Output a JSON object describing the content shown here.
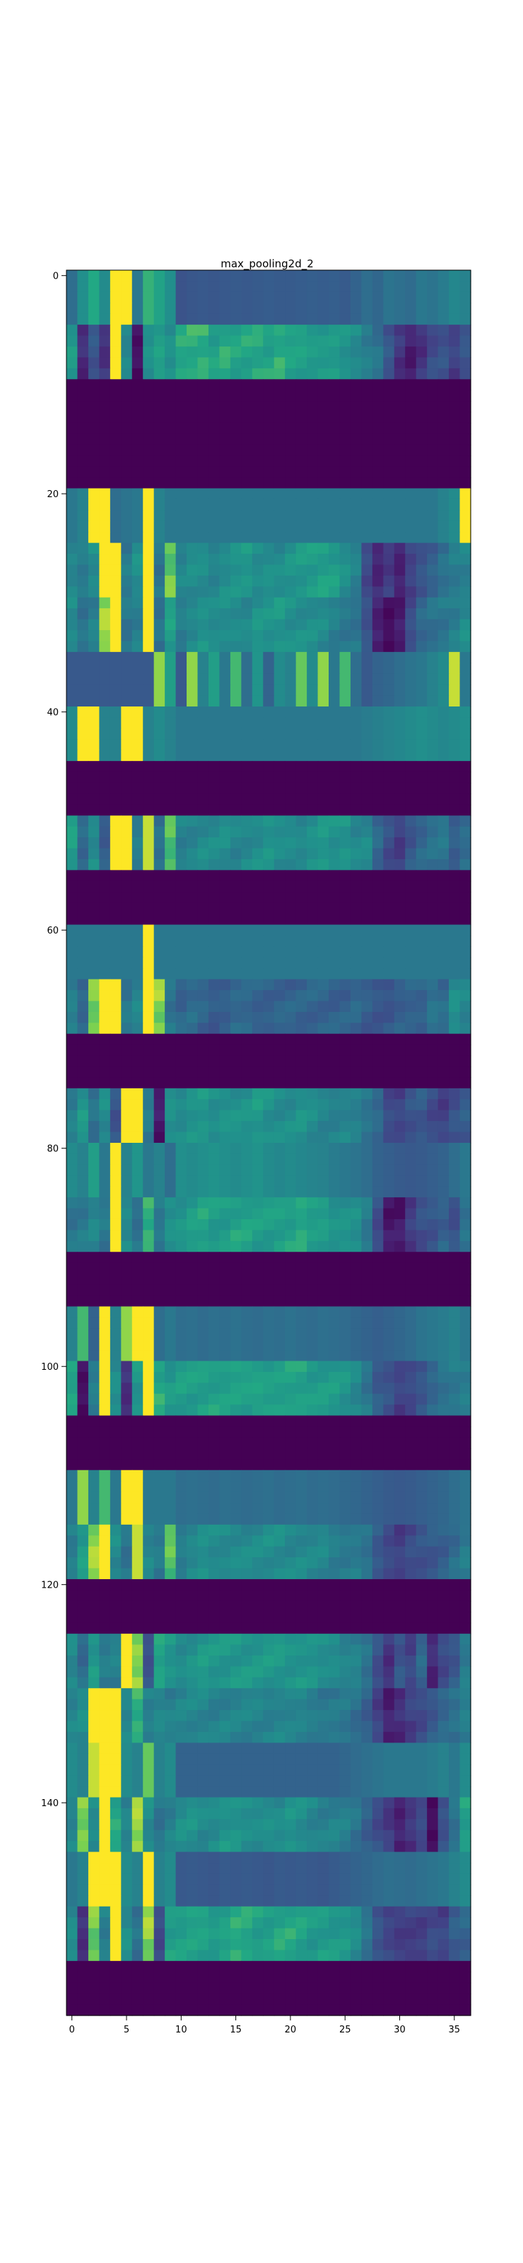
{
  "chart_data": {
    "type": "heatmap",
    "title": "max_pooling2d_2",
    "xlabel": "",
    "ylabel": "",
    "n_cols": 37,
    "n_rows": 160,
    "xlim": [
      -0.5,
      36.5
    ],
    "ylim": [
      159.5,
      -0.5
    ],
    "x_ticks": [
      0,
      5,
      10,
      15,
      20,
      25,
      30,
      35
    ],
    "y_ticks": [
      0,
      20,
      40,
      60,
      80,
      100,
      120,
      140
    ],
    "colormap": "viridis",
    "grid": false,
    "palette": {
      "low": "#440154",
      "mid": "#277f8e",
      "high": "#fde725"
    },
    "bands": [
      {
        "rows": [
          0,
          4
        ],
        "kind": "flat",
        "values": [
          0.45,
          0.62,
          0.75,
          0.6,
          1.0,
          1.0,
          0.5,
          0.78,
          0.72,
          0.62,
          0.32,
          0.34,
          0.35,
          0.34,
          0.35,
          0.36,
          0.35,
          0.36,
          0.37,
          0.36,
          0.36,
          0.37,
          0.38,
          0.37,
          0.38,
          0.36,
          0.4,
          0.45,
          0.42,
          0.48,
          0.46,
          0.44,
          0.5,
          0.48,
          0.52,
          0.58,
          0.55
        ]
      },
      {
        "rows": [
          5,
          9
        ],
        "kind": "profile",
        "values": [
          0.65,
          0.15,
          0.35,
          0.2,
          1.0,
          0.55,
          0.05,
          0.65,
          0.72,
          0.62,
          0.72,
          0.75,
          0.78,
          0.72,
          0.74,
          0.7,
          0.73,
          0.76,
          0.72,
          0.74,
          0.7,
          0.72,
          0.7,
          0.68,
          0.66,
          0.62,
          0.6,
          0.55,
          0.48,
          0.32,
          0.18,
          0.12,
          0.2,
          0.28,
          0.3,
          0.24,
          0.35
        ]
      },
      {
        "rows": [
          10,
          19
        ],
        "kind": "dead"
      },
      {
        "rows": [
          20,
          24
        ],
        "kind": "flat",
        "values": [
          0.5,
          0.55,
          1.0,
          1.0,
          0.45,
          0.48,
          0.5,
          1.0,
          0.55,
          0.5,
          0.5,
          0.5,
          0.5,
          0.5,
          0.5,
          0.5,
          0.5,
          0.5,
          0.5,
          0.5,
          0.5,
          0.5,
          0.5,
          0.5,
          0.5,
          0.5,
          0.5,
          0.5,
          0.5,
          0.5,
          0.5,
          0.5,
          0.5,
          0.5,
          0.55,
          0.6,
          1.0
        ]
      },
      {
        "rows": [
          25,
          29
        ],
        "kind": "profile",
        "values": [
          0.55,
          0.5,
          0.6,
          1.0,
          1.0,
          0.5,
          0.6,
          1.0,
          0.5,
          0.85,
          0.55,
          0.6,
          0.62,
          0.58,
          0.6,
          0.62,
          0.65,
          0.62,
          0.64,
          0.6,
          0.62,
          0.66,
          0.7,
          0.72,
          0.68,
          0.6,
          0.55,
          0.3,
          0.15,
          0.2,
          0.1,
          0.25,
          0.35,
          0.4,
          0.45,
          0.5,
          0.55
        ]
      },
      {
        "rows": [
          30,
          34
        ],
        "kind": "profile",
        "values": [
          0.6,
          0.5,
          0.55,
          0.9,
          1.0,
          0.5,
          0.55,
          1.0,
          0.45,
          0.7,
          0.55,
          0.6,
          0.62,
          0.58,
          0.6,
          0.62,
          0.6,
          0.64,
          0.62,
          0.66,
          0.64,
          0.62,
          0.6,
          0.58,
          0.55,
          0.52,
          0.48,
          0.3,
          0.1,
          0.05,
          0.12,
          0.3,
          0.4,
          0.45,
          0.5,
          0.55,
          0.6
        ]
      },
      {
        "rows": [
          35,
          39
        ],
        "kind": "flat",
        "values": [
          0.35,
          0.35,
          0.35,
          0.35,
          0.35,
          0.35,
          0.35,
          0.35,
          0.9,
          0.7,
          0.35,
          0.9,
          0.55,
          0.7,
          0.5,
          0.8,
          0.45,
          0.65,
          0.4,
          0.6,
          0.55,
          0.85,
          0.6,
          0.9,
          0.5,
          0.8,
          0.45,
          0.35,
          0.4,
          0.42,
          0.45,
          0.48,
          0.5,
          0.55,
          0.6,
          0.95,
          0.5
        ]
      },
      {
        "rows": [
          40,
          44
        ],
        "kind": "flat",
        "values": [
          0.6,
          1.0,
          1.0,
          0.55,
          0.55,
          1.0,
          1.0,
          0.55,
          0.6,
          0.55,
          0.5,
          0.5,
          0.5,
          0.5,
          0.5,
          0.5,
          0.5,
          0.5,
          0.5,
          0.5,
          0.5,
          0.5,
          0.5,
          0.5,
          0.5,
          0.5,
          0.5,
          0.52,
          0.54,
          0.56,
          0.58,
          0.6,
          0.62,
          0.6,
          0.58,
          0.6,
          0.62
        ]
      },
      {
        "rows": [
          45,
          49
        ],
        "kind": "dead"
      },
      {
        "rows": [
          50,
          54
        ],
        "kind": "profile",
        "values": [
          0.7,
          0.45,
          0.6,
          0.35,
          1.0,
          1.0,
          0.55,
          0.95,
          0.45,
          0.8,
          0.55,
          0.58,
          0.6,
          0.58,
          0.6,
          0.58,
          0.6,
          0.6,
          0.62,
          0.6,
          0.62,
          0.6,
          0.62,
          0.64,
          0.62,
          0.66,
          0.6,
          0.58,
          0.4,
          0.3,
          0.25,
          0.35,
          0.4,
          0.45,
          0.5,
          0.4,
          0.45
        ]
      },
      {
        "rows": [
          55,
          59
        ],
        "kind": "dead"
      },
      {
        "rows": [
          60,
          64
        ],
        "kind": "flat",
        "values": [
          0.5,
          0.5,
          0.5,
          0.5,
          0.5,
          0.5,
          0.5,
          1.0,
          0.5,
          0.5,
          0.5,
          0.5,
          0.5,
          0.5,
          0.5,
          0.5,
          0.5,
          0.5,
          0.5,
          0.5,
          0.5,
          0.5,
          0.5,
          0.5,
          0.5,
          0.5,
          0.5,
          0.5,
          0.5,
          0.5,
          0.5,
          0.5,
          0.5,
          0.5,
          0.5,
          0.5,
          0.5
        ]
      },
      {
        "rows": [
          65,
          69
        ],
        "kind": "profile",
        "values": [
          0.55,
          0.4,
          0.85,
          1.0,
          1.0,
          0.5,
          0.55,
          1.0,
          0.9,
          0.5,
          0.4,
          0.42,
          0.4,
          0.38,
          0.4,
          0.42,
          0.4,
          0.38,
          0.4,
          0.42,
          0.4,
          0.38,
          0.4,
          0.42,
          0.4,
          0.38,
          0.4,
          0.38,
          0.36,
          0.34,
          0.36,
          0.38,
          0.4,
          0.5,
          0.45,
          0.6,
          0.55
        ]
      },
      {
        "rows": [
          70,
          74
        ],
        "kind": "dead"
      },
      {
        "rows": [
          75,
          79
        ],
        "kind": "profile",
        "values": [
          0.55,
          0.65,
          0.45,
          0.6,
          0.35,
          1.0,
          1.0,
          0.5,
          0.1,
          0.65,
          0.6,
          0.62,
          0.64,
          0.62,
          0.66,
          0.64,
          0.62,
          0.66,
          0.64,
          0.62,
          0.6,
          0.62,
          0.6,
          0.58,
          0.56,
          0.55,
          0.52,
          0.48,
          0.45,
          0.3,
          0.25,
          0.3,
          0.35,
          0.3,
          0.25,
          0.3,
          0.35
        ]
      },
      {
        "rows": [
          80,
          84
        ],
        "kind": "flat",
        "values": [
          0.6,
          0.55,
          0.7,
          0.5,
          1.0,
          0.55,
          0.65,
          0.5,
          0.55,
          0.45,
          0.62,
          0.6,
          0.62,
          0.64,
          0.62,
          0.6,
          0.62,
          0.64,
          0.6,
          0.58,
          0.6,
          0.58,
          0.56,
          0.55,
          0.52,
          0.5,
          0.48,
          0.45,
          0.4,
          0.38,
          0.36,
          0.35,
          0.36,
          0.38,
          0.4,
          0.45,
          0.5
        ]
      },
      {
        "rows": [
          85,
          89
        ],
        "kind": "profile",
        "values": [
          0.5,
          0.5,
          0.55,
          0.5,
          1.0,
          0.6,
          0.45,
          0.75,
          0.5,
          0.65,
          0.66,
          0.68,
          0.7,
          0.68,
          0.7,
          0.72,
          0.7,
          0.68,
          0.7,
          0.72,
          0.7,
          0.72,
          0.68,
          0.7,
          0.66,
          0.64,
          0.6,
          0.5,
          0.3,
          0.1,
          0.08,
          0.2,
          0.3,
          0.35,
          0.4,
          0.3,
          0.45
        ]
      },
      {
        "rows": [
          90,
          94
        ],
        "kind": "dead"
      },
      {
        "rows": [
          95,
          99
        ],
        "kind": "flat",
        "values": [
          0.55,
          0.8,
          0.4,
          1.0,
          0.55,
          0.9,
          1.0,
          1.0,
          0.45,
          0.5,
          0.45,
          0.46,
          0.44,
          0.46,
          0.45,
          0.47,
          0.45,
          0.44,
          0.46,
          0.45,
          0.47,
          0.45,
          0.44,
          0.46,
          0.45,
          0.44,
          0.42,
          0.4,
          0.38,
          0.4,
          0.42,
          0.44,
          0.48,
          0.5,
          0.52,
          0.55,
          0.5
        ]
      },
      {
        "rows": [
          100,
          104
        ],
        "kind": "profile",
        "values": [
          0.7,
          0.05,
          0.55,
          1.0,
          0.6,
          0.15,
          0.65,
          1.0,
          0.75,
          0.65,
          0.68,
          0.7,
          0.72,
          0.7,
          0.68,
          0.7,
          0.72,
          0.74,
          0.7,
          0.68,
          0.7,
          0.72,
          0.7,
          0.68,
          0.66,
          0.64,
          0.6,
          0.5,
          0.35,
          0.3,
          0.25,
          0.3,
          0.35,
          0.4,
          0.45,
          0.5,
          0.55
        ]
      },
      {
        "rows": [
          105,
          109
        ],
        "kind": "dead"
      },
      {
        "rows": [
          110,
          114
        ],
        "kind": "flat",
        "values": [
          0.5,
          0.9,
          0.55,
          0.8,
          0.5,
          1.0,
          1.0,
          0.5,
          0.5,
          0.5,
          0.45,
          0.46,
          0.45,
          0.44,
          0.46,
          0.45,
          0.44,
          0.45,
          0.46,
          0.44,
          0.45,
          0.46,
          0.44,
          0.45,
          0.44,
          0.43,
          0.42,
          0.4,
          0.38,
          0.36,
          0.35,
          0.36,
          0.38,
          0.4,
          0.42,
          0.45,
          0.48
        ]
      },
      {
        "rows": [
          115,
          119
        ],
        "kind": "profile",
        "values": [
          0.55,
          0.7,
          0.9,
          1.0,
          0.6,
          0.5,
          0.95,
          0.55,
          0.5,
          0.85,
          0.55,
          0.58,
          0.6,
          0.58,
          0.6,
          0.62,
          0.6,
          0.58,
          0.6,
          0.62,
          0.6,
          0.58,
          0.56,
          0.58,
          0.55,
          0.52,
          0.5,
          0.45,
          0.35,
          0.3,
          0.25,
          0.28,
          0.3,
          0.35,
          0.4,
          0.45,
          0.5
        ]
      },
      {
        "rows": [
          120,
          124
        ],
        "kind": "dead"
      },
      {
        "rows": [
          125,
          129
        ],
        "kind": "profile",
        "values": [
          0.6,
          0.45,
          0.65,
          0.5,
          0.55,
          1.0,
          0.9,
          0.3,
          0.7,
          0.65,
          0.62,
          0.64,
          0.66,
          0.64,
          0.66,
          0.68,
          0.66,
          0.64,
          0.66,
          0.68,
          0.66,
          0.64,
          0.62,
          0.6,
          0.62,
          0.58,
          0.55,
          0.45,
          0.3,
          0.2,
          0.35,
          0.25,
          0.4,
          0.15,
          0.3,
          0.35,
          0.5
        ]
      },
      {
        "rows": [
          130,
          134
        ],
        "kind": "profile",
        "values": [
          0.55,
          0.6,
          1.0,
          1.0,
          1.0,
          0.55,
          0.75,
          0.55,
          0.6,
          0.55,
          0.55,
          0.56,
          0.58,
          0.56,
          0.55,
          0.54,
          0.56,
          0.58,
          0.56,
          0.55,
          0.54,
          0.56,
          0.55,
          0.52,
          0.5,
          0.48,
          0.45,
          0.4,
          0.25,
          0.1,
          0.15,
          0.25,
          0.3,
          0.35,
          0.4,
          0.45,
          0.55
        ]
      },
      {
        "rows": [
          135,
          139
        ],
        "kind": "flat",
        "values": [
          0.6,
          0.55,
          0.95,
          1.0,
          1.0,
          0.6,
          0.55,
          0.85,
          0.55,
          0.6,
          0.4,
          0.4,
          0.4,
          0.4,
          0.4,
          0.4,
          0.4,
          0.4,
          0.4,
          0.4,
          0.4,
          0.4,
          0.4,
          0.4,
          0.4,
          0.42,
          0.44,
          0.46,
          0.48,
          0.5,
          0.5,
          0.5,
          0.5,
          0.52,
          0.55,
          0.5,
          0.6
        ]
      },
      {
        "rows": [
          140,
          144
        ],
        "kind": "profile",
        "values": [
          0.55,
          0.85,
          0.6,
          1.0,
          0.75,
          0.55,
          0.9,
          0.6,
          0.5,
          0.55,
          0.6,
          0.62,
          0.6,
          0.62,
          0.64,
          0.62,
          0.6,
          0.62,
          0.64,
          0.6,
          0.62,
          0.6,
          0.58,
          0.56,
          0.55,
          0.52,
          0.48,
          0.4,
          0.3,
          0.2,
          0.1,
          0.2,
          0.3,
          0.05,
          0.3,
          0.45,
          0.7
        ]
      },
      {
        "rows": [
          145,
          149
        ],
        "kind": "flat",
        "values": [
          0.5,
          0.55,
          1.0,
          1.0,
          1.0,
          0.6,
          0.55,
          1.0,
          0.55,
          0.6,
          0.35,
          0.36,
          0.35,
          0.34,
          0.36,
          0.35,
          0.36,
          0.35,
          0.34,
          0.36,
          0.35,
          0.36,
          0.35,
          0.34,
          0.36,
          0.38,
          0.4,
          0.42,
          0.44,
          0.46,
          0.45,
          0.44,
          0.46,
          0.48,
          0.5,
          0.55,
          0.6
        ]
      },
      {
        "rows": [
          150,
          154
        ],
        "kind": "profile",
        "values": [
          0.6,
          0.15,
          0.85,
          0.55,
          1.0,
          0.6,
          0.45,
          0.9,
          0.3,
          0.7,
          0.68,
          0.7,
          0.72,
          0.7,
          0.72,
          0.74,
          0.72,
          0.7,
          0.72,
          0.74,
          0.72,
          0.7,
          0.68,
          0.7,
          0.66,
          0.64,
          0.6,
          0.5,
          0.35,
          0.25,
          0.2,
          0.22,
          0.25,
          0.3,
          0.25,
          0.35,
          0.4
        ]
      },
      {
        "rows": [
          155,
          159
        ],
        "kind": "dead"
      }
    ]
  }
}
